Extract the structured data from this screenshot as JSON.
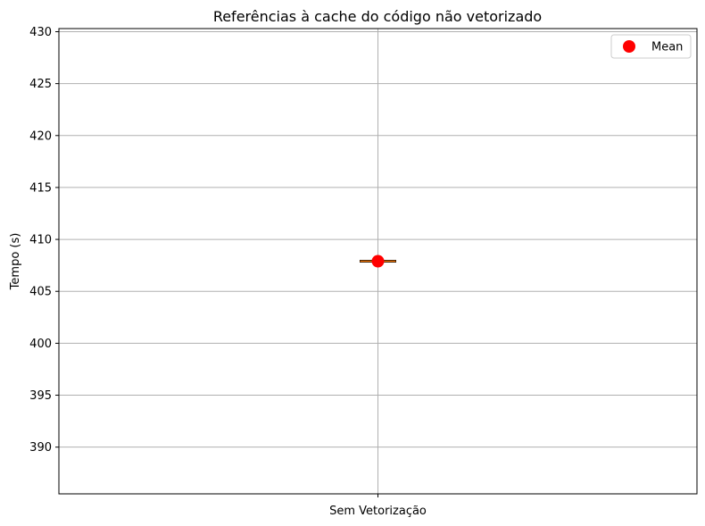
{
  "chart_data": {
    "type": "box",
    "title": "Referências à cache do código não vetorizado",
    "xlabel": "",
    "ylabel": "Tempo  (s)",
    "categories": [
      "Sem Vetorização"
    ],
    "boxes": [
      {
        "category": "Sem Vetorização",
        "min": 407.9,
        "q1": 407.9,
        "median": 407.9,
        "q3": 407.9,
        "max": 407.9,
        "mean": 407.9
      }
    ],
    "ylim": [
      385.5,
      430.3
    ],
    "yticks": [
      390,
      395,
      400,
      405,
      410,
      415,
      420,
      425,
      430
    ],
    "grid": true,
    "legend": {
      "position": "top-right",
      "entries": [
        {
          "label": "Mean",
          "marker": "circle"
        }
      ]
    },
    "colors": {
      "mean": "#ff0000",
      "median": "#ff7f0e",
      "whisker": "#000000",
      "grid": "#b0b0b0"
    }
  }
}
